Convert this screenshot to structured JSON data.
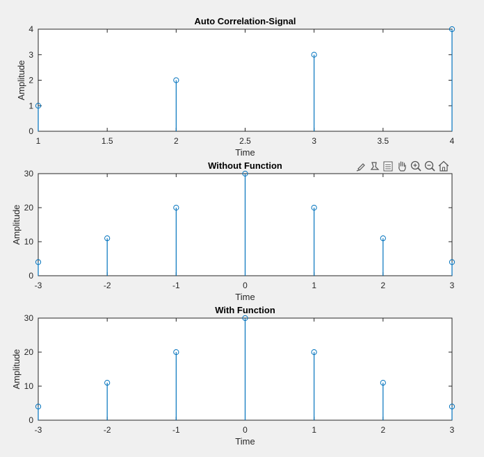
{
  "figure": {
    "background": "#f0f0f0",
    "stem_color": "#0072bd",
    "axes_color": "#262626"
  },
  "toolbar": {
    "icons": [
      "brush-icon",
      "data-tips-icon",
      "legend-icon",
      "pan-hand-icon",
      "zoom-in-icon",
      "zoom-out-icon",
      "home-icon"
    ]
  },
  "chart_data": [
    {
      "type": "stem",
      "title": "Auto Correlation-Signal",
      "xlabel": "Time",
      "ylabel": "Amplitude",
      "xlim": [
        1,
        4
      ],
      "ylim": [
        0,
        4
      ],
      "xticks": [
        "1",
        "1.5",
        "2",
        "2.5",
        "3",
        "3.5",
        "4"
      ],
      "yticks": [
        "0",
        "1",
        "2",
        "3",
        "4"
      ],
      "x": [
        1,
        2,
        3,
        4
      ],
      "y": [
        1,
        2,
        3,
        4
      ]
    },
    {
      "type": "stem",
      "title": "Without Function",
      "xlabel": "Time",
      "ylabel": "Amplitude",
      "xlim": [
        -3,
        3
      ],
      "ylim": [
        0,
        30
      ],
      "xticks": [
        "-3",
        "-2",
        "-1",
        "0",
        "1",
        "2",
        "3"
      ],
      "yticks": [
        "0",
        "10",
        "20",
        "30"
      ],
      "x": [
        -3,
        -2,
        -1,
        0,
        1,
        2,
        3
      ],
      "y": [
        4,
        11,
        20,
        30,
        20,
        11,
        4
      ]
    },
    {
      "type": "stem",
      "title": "With Function",
      "xlabel": "Time",
      "ylabel": "Amplitude",
      "xlim": [
        -3,
        3
      ],
      "ylim": [
        0,
        30
      ],
      "xticks": [
        "-3",
        "-2",
        "-1",
        "0",
        "1",
        "2",
        "3"
      ],
      "yticks": [
        "0",
        "10",
        "20",
        "30"
      ],
      "x": [
        -3,
        -2,
        -1,
        0,
        1,
        2,
        3
      ],
      "y": [
        4,
        11,
        20,
        30,
        20,
        11,
        4
      ]
    }
  ]
}
